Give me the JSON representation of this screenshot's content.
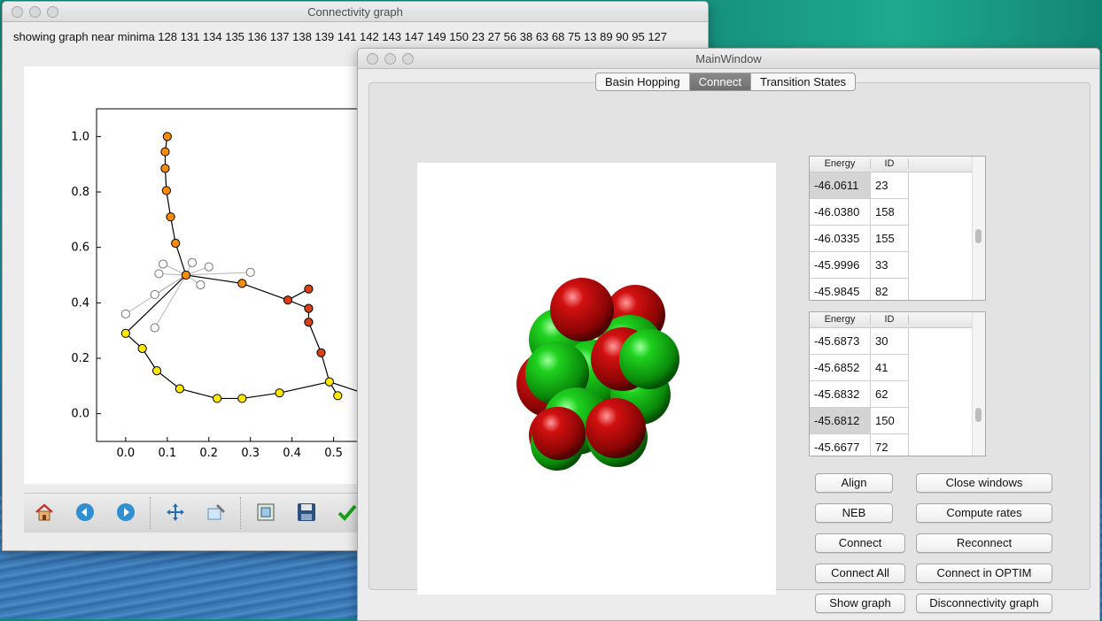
{
  "connectivity_window": {
    "title": "Connectivity graph",
    "minima_label": "showing graph near minima  128 131 134 135 136 137 138 139 141 142 143 147 149 150 23 27 56 38 63 68 75 13 89 90 95 127",
    "toolbar_icons": [
      "home-icon",
      "back-icon",
      "forward-icon",
      "pan-icon",
      "zoom-icon",
      "subplots-icon",
      "save-icon",
      "check-icon"
    ]
  },
  "main_window": {
    "title": "MainWindow",
    "tabs": [
      {
        "label": "Basin Hopping",
        "active": false
      },
      {
        "label": "Connect",
        "active": true
      },
      {
        "label": "Transition States",
        "active": false
      }
    ],
    "table1": {
      "headers": {
        "energy": "Energy",
        "id": "ID"
      },
      "rows": [
        {
          "energy": "-46.0611",
          "id": "23"
        },
        {
          "energy": "-46.0380",
          "id": "158"
        },
        {
          "energy": "-46.0335",
          "id": "155"
        },
        {
          "energy": "-45.9996",
          "id": "33"
        },
        {
          "energy": "-45.9845",
          "id": "82"
        }
      ]
    },
    "table2": {
      "headers": {
        "energy": "Energy",
        "id": "ID"
      },
      "rows": [
        {
          "energy": "-45.6873",
          "id": "30"
        },
        {
          "energy": "-45.6852",
          "id": "41"
        },
        {
          "energy": "-45.6832",
          "id": "62"
        },
        {
          "energy": "-45.6812",
          "id": "150"
        },
        {
          "energy": "-45.6677",
          "id": "72"
        }
      ]
    },
    "buttons": {
      "align": "Align",
      "close_windows": "Close windows",
      "neb": "NEB",
      "compute_rates": "Compute rates",
      "connect": "Connect",
      "reconnect": "Reconnect",
      "connect_all": "Connect All",
      "connect_optim": "Connect in OPTIM",
      "show_graph": "Show graph",
      "disconnectivity_graph": "Disconnectivity graph"
    }
  },
  "chart_data": {
    "type": "scatter",
    "title": "",
    "xlabel": "",
    "ylabel": "",
    "xlim": [
      -0.07,
      0.65
    ],
    "ylim": [
      -0.1,
      1.1
    ],
    "x_ticks": [
      "0.0",
      "0.1",
      "0.2",
      "0.3",
      "0.4",
      "0.5"
    ],
    "y_ticks": [
      "0.0",
      "0.2",
      "0.4",
      "0.6",
      "0.8",
      "1.0"
    ],
    "series": [
      {
        "color": "#ff8c00",
        "points": [
          [
            0.1,
            1.0
          ],
          [
            0.095,
            0.945
          ],
          [
            0.095,
            0.885
          ],
          [
            0.098,
            0.805
          ],
          [
            0.108,
            0.71
          ],
          [
            0.12,
            0.615
          ],
          [
            0.145,
            0.5
          ],
          [
            0.28,
            0.47
          ]
        ]
      },
      {
        "color": "#e04010",
        "points": [
          [
            0.39,
            0.41
          ],
          [
            0.44,
            0.45
          ],
          [
            0.44,
            0.38
          ],
          [
            0.44,
            0.33
          ],
          [
            0.47,
            0.22
          ]
        ]
      },
      {
        "color": "#ffe800",
        "points": [
          [
            0.0,
            0.29
          ],
          [
            0.04,
            0.235
          ],
          [
            0.075,
            0.155
          ],
          [
            0.13,
            0.09
          ],
          [
            0.22,
            0.055
          ],
          [
            0.28,
            0.055
          ],
          [
            0.37,
            0.075
          ],
          [
            0.49,
            0.115
          ],
          [
            0.51,
            0.065
          ],
          [
            0.6,
            0.06
          ]
        ]
      },
      {
        "color": "#ffffff",
        "points": [
          [
            0.0,
            0.36
          ],
          [
            0.07,
            0.43
          ],
          [
            0.08,
            0.505
          ],
          [
            0.09,
            0.54
          ],
          [
            0.16,
            0.545
          ],
          [
            0.2,
            0.53
          ],
          [
            0.3,
            0.51
          ],
          [
            0.18,
            0.465
          ],
          [
            0.07,
            0.31
          ]
        ]
      }
    ],
    "edges": [
      [
        [
          0.1,
          1.0
        ],
        [
          0.095,
          0.945
        ],
        [
          0.095,
          0.885
        ],
        [
          0.098,
          0.805
        ],
        [
          0.108,
          0.71
        ],
        [
          0.12,
          0.615
        ],
        [
          0.145,
          0.5
        ],
        [
          0.28,
          0.47
        ],
        [
          0.39,
          0.41
        ],
        [
          0.44,
          0.38
        ],
        [
          0.44,
          0.33
        ],
        [
          0.47,
          0.22
        ],
        [
          0.49,
          0.115
        ],
        [
          0.6,
          0.06
        ]
      ],
      [
        [
          0.39,
          0.41
        ],
        [
          0.44,
          0.45
        ]
      ],
      [
        [
          0.145,
          0.5
        ],
        [
          0.0,
          0.29
        ],
        [
          0.04,
          0.235
        ],
        [
          0.075,
          0.155
        ],
        [
          0.13,
          0.09
        ],
        [
          0.22,
          0.055
        ],
        [
          0.28,
          0.055
        ],
        [
          0.37,
          0.075
        ],
        [
          0.49,
          0.115
        ],
        [
          0.51,
          0.065
        ]
      ]
    ],
    "gray_edges": [
      [
        [
          0.145,
          0.5
        ],
        [
          0.0,
          0.36
        ]
      ],
      [
        [
          0.145,
          0.5
        ],
        [
          0.07,
          0.43
        ]
      ],
      [
        [
          0.145,
          0.5
        ],
        [
          0.08,
          0.505
        ]
      ],
      [
        [
          0.145,
          0.5
        ],
        [
          0.09,
          0.54
        ]
      ],
      [
        [
          0.145,
          0.5
        ],
        [
          0.16,
          0.545
        ]
      ],
      [
        [
          0.145,
          0.5
        ],
        [
          0.2,
          0.53
        ]
      ],
      [
        [
          0.145,
          0.5
        ],
        [
          0.3,
          0.51
        ]
      ],
      [
        [
          0.145,
          0.5
        ],
        [
          0.18,
          0.465
        ]
      ],
      [
        [
          0.145,
          0.5
        ],
        [
          0.07,
          0.31
        ]
      ]
    ]
  }
}
